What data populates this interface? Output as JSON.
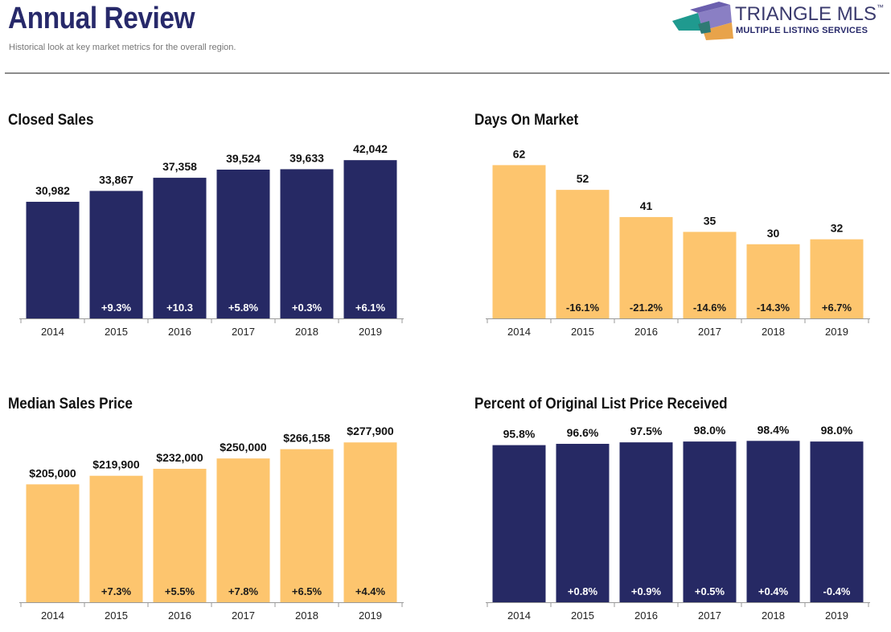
{
  "header": {
    "title": "Annual Review",
    "subtitle": "Historical look at key market metrics for the overall region."
  },
  "logo": {
    "name": "TRIANGLE MLS",
    "trademark": "™",
    "tagline": "MULTIPLE LISTING SERVICES"
  },
  "colors": {
    "title": "#27296a",
    "navy_bar": "#262964",
    "gold_bar": "#fdc56e"
  },
  "chart_data": [
    {
      "type": "bar",
      "title": "Closed Sales",
      "categories": [
        "2014",
        "2015",
        "2016",
        "2017",
        "2018",
        "2019"
      ],
      "values": [
        30982,
        33867,
        37358,
        39524,
        39633,
        42042
      ],
      "value_labels": [
        "30,982",
        "33,867",
        "37,358",
        "39,524",
        "39,633",
        "42,042"
      ],
      "change_labels": [
        "",
        "+9.3%",
        "+10.3",
        "+5.8%",
        "+0.3%",
        "+6.1%"
      ],
      "bar_color": "#262964",
      "ylim": [
        0,
        44000
      ],
      "grid": false
    },
    {
      "type": "bar",
      "title": "Days On Market",
      "categories": [
        "2014",
        "2015",
        "2016",
        "2017",
        "2018",
        "2019"
      ],
      "values": [
        62,
        52,
        41,
        35,
        30,
        32
      ],
      "value_labels": [
        "62",
        "52",
        "41",
        "35",
        "30",
        "32"
      ],
      "change_labels": [
        "",
        "-16.1%",
        "-21.2%",
        "-14.6%",
        "-14.3%",
        "+6.7%"
      ],
      "bar_color": "#fdc56e",
      "ylim": [
        0,
        67
      ],
      "grid": false
    },
    {
      "type": "bar",
      "title": "Median Sales Price",
      "categories": [
        "2014",
        "2015",
        "2016",
        "2017",
        "2018",
        "2019"
      ],
      "values": [
        205000,
        219900,
        232000,
        250000,
        266158,
        277900
      ],
      "value_labels": [
        "$205,000",
        "$219,900",
        "$232,000",
        "$250,000",
        "$266,158",
        "$277,900"
      ],
      "change_labels": [
        "",
        "+7.3%",
        "+5.5%",
        "+7.8%",
        "+6.5%",
        "+4.4%"
      ],
      "bar_color": "#fdc56e",
      "ylim": [
        0,
        288000
      ],
      "grid": false
    },
    {
      "type": "bar",
      "title": "Percent of Original List Price Received",
      "categories": [
        "2014",
        "2015",
        "2016",
        "2017",
        "2018",
        "2019"
      ],
      "values": [
        95.8,
        96.6,
        97.5,
        98.0,
        98.4,
        98.0
      ],
      "value_labels": [
        "95.8%",
        "96.6%",
        "97.5%",
        "98.0%",
        "98.4%",
        "98.0%"
      ],
      "change_labels": [
        "",
        "+0.8%",
        "+0.9%",
        "+0.5%",
        "+0.4%",
        "-0.4%"
      ],
      "bar_color": "#262964",
      "ylim": [
        0,
        101
      ],
      "grid": false
    }
  ]
}
